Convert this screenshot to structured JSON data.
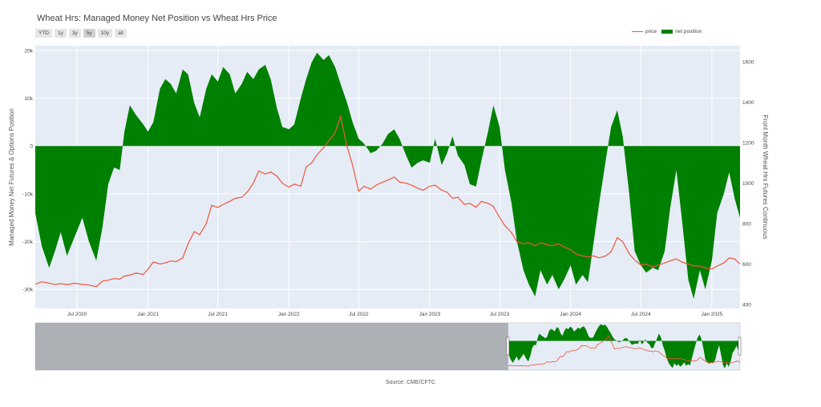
{
  "title": "Wheat Hrs: Managed Money Net Position vs Wheat Hrs Price",
  "range_buttons": [
    "YTD",
    "1y",
    "3y",
    "5y",
    "10y",
    "all"
  ],
  "active_button": "5y",
  "legend": {
    "price": "price",
    "net": "net position"
  },
  "source": "Source: CME/CFTC",
  "colors": {
    "price": "#ef553b",
    "net": "#008000",
    "plot_bg": "#e5ecf6",
    "grid": "#ffffff",
    "range_shade": "#808080"
  },
  "chart_data": {
    "type": "area",
    "title": "Wheat Hrs: Managed Money Net Position vs Wheat Hrs Price",
    "y_left_label": "Managed Money Net Futures & Options Position",
    "y_right_label": "Front Month Wheat Hrs Futures Continuous",
    "x_ticks": [
      "Jul 2020",
      "Jan 2021",
      "Jul 2021",
      "Jan 2022",
      "Jul 2022",
      "Jan 2023",
      "Jul 2023",
      "Jan 2024",
      "Jul 2024",
      "Jan 2025"
    ],
    "y_left_ticks": [
      "20k",
      "10k",
      "0",
      "-10k",
      "-20k",
      "-30k"
    ],
    "y_right_ticks": [
      "1600",
      "1400",
      "1200",
      "1000",
      "800",
      "600",
      "400"
    ],
    "x_range": [
      "2020-03-15",
      "2025-03-15"
    ],
    "y_left_range": [
      -34000,
      21000
    ],
    "y_right_range": [
      380,
      1680
    ],
    "rangeslider_visible_from": "2020-03-15",
    "rangeslider_full_range": [
      "2010-01-01",
      "2025-03-15"
    ],
    "series": [
      {
        "name": "net position",
        "kind": "area",
        "points": [
          [
            "2020-03-15",
            -14000
          ],
          [
            "2020-04-01",
            -21000
          ],
          [
            "2020-04-20",
            -25500
          ],
          [
            "2020-05-05",
            -22000
          ],
          [
            "2020-05-20",
            -18000
          ],
          [
            "2020-06-05",
            -23000
          ],
          [
            "2020-06-25",
            -19000
          ],
          [
            "2020-07-15",
            -15000
          ],
          [
            "2020-08-01",
            -20000
          ],
          [
            "2020-08-20",
            -24000
          ],
          [
            "2020-09-05",
            -17000
          ],
          [
            "2020-09-20",
            -8000
          ],
          [
            "2020-10-05",
            -4500
          ],
          [
            "2020-10-20",
            -5000
          ],
          [
            "2020-11-01",
            3000
          ],
          [
            "2020-11-15",
            8500
          ],
          [
            "2020-12-01",
            6500
          ],
          [
            "2020-12-20",
            4500
          ],
          [
            "2021-01-01",
            3000
          ],
          [
            "2021-01-15",
            5000
          ],
          [
            "2021-02-01",
            12000
          ],
          [
            "2021-02-15",
            14000
          ],
          [
            "2021-03-01",
            13000
          ],
          [
            "2021-03-15",
            11000
          ],
          [
            "2021-04-01",
            16000
          ],
          [
            "2021-04-15",
            15000
          ],
          [
            "2021-05-01",
            9000
          ],
          [
            "2021-05-15",
            6000
          ],
          [
            "2021-06-01",
            12000
          ],
          [
            "2021-06-15",
            15000
          ],
          [
            "2021-07-01",
            13500
          ],
          [
            "2021-07-15",
            16500
          ],
          [
            "2021-08-01",
            15000
          ],
          [
            "2021-08-15",
            11000
          ],
          [
            "2021-09-01",
            13000
          ],
          [
            "2021-09-15",
            15500
          ],
          [
            "2021-10-01",
            14000
          ],
          [
            "2021-10-15",
            16000
          ],
          [
            "2021-11-01",
            17000
          ],
          [
            "2021-11-15",
            14000
          ],
          [
            "2021-12-01",
            8000
          ],
          [
            "2021-12-15",
            4000
          ],
          [
            "2022-01-01",
            3500
          ],
          [
            "2022-01-15",
            4500
          ],
          [
            "2022-02-01",
            10000
          ],
          [
            "2022-02-15",
            14000
          ],
          [
            "2022-03-01",
            17500
          ],
          [
            "2022-03-15",
            19500
          ],
          [
            "2022-04-01",
            18000
          ],
          [
            "2022-04-15",
            19000
          ],
          [
            "2022-05-01",
            16500
          ],
          [
            "2022-05-15",
            13000
          ],
          [
            "2022-06-01",
            9000
          ],
          [
            "2022-06-15",
            5000
          ],
          [
            "2022-07-01",
            1500
          ],
          [
            "2022-07-15",
            500
          ],
          [
            "2022-08-01",
            -1500
          ],
          [
            "2022-08-15",
            -1000
          ],
          [
            "2022-09-01",
            500
          ],
          [
            "2022-09-15",
            2500
          ],
          [
            "2022-10-01",
            3500
          ],
          [
            "2022-10-15",
            1500
          ],
          [
            "2022-11-01",
            -2000
          ],
          [
            "2022-11-15",
            -4500
          ],
          [
            "2022-12-01",
            -3500
          ],
          [
            "2022-12-15",
            -3000
          ],
          [
            "2023-01-01",
            -3500
          ],
          [
            "2023-01-15",
            1500
          ],
          [
            "2023-02-01",
            -4000
          ],
          [
            "2023-02-15",
            -1500
          ],
          [
            "2023-03-01",
            2000
          ],
          [
            "2023-03-15",
            -2000
          ],
          [
            "2023-04-01",
            -4000
          ],
          [
            "2023-04-15",
            -8000
          ],
          [
            "2023-05-01",
            -8500
          ],
          [
            "2023-05-15",
            -3000
          ],
          [
            "2023-06-01",
            3000
          ],
          [
            "2023-06-15",
            8500
          ],
          [
            "2023-07-01",
            4000
          ],
          [
            "2023-07-15",
            -5000
          ],
          [
            "2023-08-01",
            -12000
          ],
          [
            "2023-08-15",
            -20000
          ],
          [
            "2023-09-01",
            -26000
          ],
          [
            "2023-09-15",
            -29000
          ],
          [
            "2023-10-01",
            -31500
          ],
          [
            "2023-10-15",
            -26000
          ],
          [
            "2023-11-01",
            -29000
          ],
          [
            "2023-11-15",
            -27000
          ],
          [
            "2023-12-01",
            -30000
          ],
          [
            "2023-12-15",
            -28000
          ],
          [
            "2024-01-01",
            -25000
          ],
          [
            "2024-01-15",
            -29000
          ],
          [
            "2024-02-01",
            -27000
          ],
          [
            "2024-02-15",
            -28500
          ],
          [
            "2024-03-01",
            -20000
          ],
          [
            "2024-03-15",
            -12000
          ],
          [
            "2024-04-01",
            -3000
          ],
          [
            "2024-04-15",
            4000
          ],
          [
            "2024-05-01",
            7500
          ],
          [
            "2024-05-15",
            2000
          ],
          [
            "2024-06-01",
            -10000
          ],
          [
            "2024-06-15",
            -22000
          ],
          [
            "2024-07-01",
            -25000
          ],
          [
            "2024-07-15",
            -26500
          ],
          [
            "2024-08-01",
            -25500
          ],
          [
            "2024-08-15",
            -26000
          ],
          [
            "2024-09-01",
            -22000
          ],
          [
            "2024-09-15",
            -13000
          ],
          [
            "2024-10-01",
            -5000
          ],
          [
            "2024-10-15",
            -15000
          ],
          [
            "2024-11-01",
            -28000
          ],
          [
            "2024-11-15",
            -32000
          ],
          [
            "2024-12-01",
            -26000
          ],
          [
            "2024-12-15",
            -30000
          ],
          [
            "2025-01-01",
            -24000
          ],
          [
            "2025-01-15",
            -14000
          ],
          [
            "2025-02-01",
            -10000
          ],
          [
            "2025-02-15",
            -5500
          ],
          [
            "2025-03-01",
            -11000
          ],
          [
            "2025-03-15",
            -15000
          ]
        ]
      },
      {
        "name": "price",
        "kind": "line",
        "points": [
          [
            "2020-03-15",
            500
          ],
          [
            "2020-04-01",
            512
          ],
          [
            "2020-04-20",
            505
          ],
          [
            "2020-05-05",
            498
          ],
          [
            "2020-05-20",
            503
          ],
          [
            "2020-06-05",
            497
          ],
          [
            "2020-06-25",
            505
          ],
          [
            "2020-07-15",
            499
          ],
          [
            "2020-08-01",
            496
          ],
          [
            "2020-08-20",
            488
          ],
          [
            "2020-09-05",
            515
          ],
          [
            "2020-09-20",
            520
          ],
          [
            "2020-10-05",
            528
          ],
          [
            "2020-10-20",
            525
          ],
          [
            "2020-11-01",
            540
          ],
          [
            "2020-11-15",
            545
          ],
          [
            "2020-12-01",
            555
          ],
          [
            "2020-12-20",
            548
          ],
          [
            "2021-01-01",
            575
          ],
          [
            "2021-01-15",
            610
          ],
          [
            "2021-02-01",
            600
          ],
          [
            "2021-02-15",
            605
          ],
          [
            "2021-03-01",
            615
          ],
          [
            "2021-03-15",
            612
          ],
          [
            "2021-04-01",
            630
          ],
          [
            "2021-04-15",
            700
          ],
          [
            "2021-05-01",
            760
          ],
          [
            "2021-05-15",
            745
          ],
          [
            "2021-06-01",
            800
          ],
          [
            "2021-06-15",
            890
          ],
          [
            "2021-07-01",
            880
          ],
          [
            "2021-07-15",
            895
          ],
          [
            "2021-08-01",
            910
          ],
          [
            "2021-08-15",
            925
          ],
          [
            "2021-09-01",
            930
          ],
          [
            "2021-09-15",
            955
          ],
          [
            "2021-10-01",
            1000
          ],
          [
            "2021-10-15",
            1060
          ],
          [
            "2021-11-01",
            1045
          ],
          [
            "2021-11-15",
            1055
          ],
          [
            "2021-12-01",
            1035
          ],
          [
            "2021-12-15",
            1000
          ],
          [
            "2022-01-01",
            980
          ],
          [
            "2022-01-15",
            995
          ],
          [
            "2022-02-01",
            985
          ],
          [
            "2022-02-15",
            1080
          ],
          [
            "2022-03-01",
            1100
          ],
          [
            "2022-03-15",
            1140
          ],
          [
            "2022-04-01",
            1175
          ],
          [
            "2022-04-15",
            1210
          ],
          [
            "2022-05-01",
            1250
          ],
          [
            "2022-05-15",
            1330
          ],
          [
            "2022-06-01",
            1180
          ],
          [
            "2022-06-15",
            1090
          ],
          [
            "2022-07-01",
            960
          ],
          [
            "2022-07-15",
            985
          ],
          [
            "2022-08-01",
            970
          ],
          [
            "2022-08-15",
            990
          ],
          [
            "2022-09-01",
            1005
          ],
          [
            "2022-09-15",
            1015
          ],
          [
            "2022-10-01",
            1030
          ],
          [
            "2022-10-15",
            1005
          ],
          [
            "2022-11-01",
            1000
          ],
          [
            "2022-11-15",
            990
          ],
          [
            "2022-12-01",
            975
          ],
          [
            "2022-12-15",
            965
          ],
          [
            "2023-01-01",
            985
          ],
          [
            "2023-01-15",
            990
          ],
          [
            "2023-02-01",
            965
          ],
          [
            "2023-02-15",
            955
          ],
          [
            "2023-03-01",
            925
          ],
          [
            "2023-03-15",
            930
          ],
          [
            "2023-04-01",
            895
          ],
          [
            "2023-04-15",
            900
          ],
          [
            "2023-05-01",
            880
          ],
          [
            "2023-05-15",
            910
          ],
          [
            "2023-06-01",
            900
          ],
          [
            "2023-06-15",
            885
          ],
          [
            "2023-07-01",
            830
          ],
          [
            "2023-07-15",
            790
          ],
          [
            "2023-08-01",
            755
          ],
          [
            "2023-08-15",
            710
          ],
          [
            "2023-09-01",
            700
          ],
          [
            "2023-09-15",
            705
          ],
          [
            "2023-10-01",
            690
          ],
          [
            "2023-10-15",
            705
          ],
          [
            "2023-11-01",
            695
          ],
          [
            "2023-11-15",
            690
          ],
          [
            "2023-12-01",
            700
          ],
          [
            "2023-12-15",
            685
          ],
          [
            "2024-01-01",
            670
          ],
          [
            "2024-01-15",
            650
          ],
          [
            "2024-02-01",
            640
          ],
          [
            "2024-02-15",
            635
          ],
          [
            "2024-03-01",
            640
          ],
          [
            "2024-03-15",
            630
          ],
          [
            "2024-04-01",
            640
          ],
          [
            "2024-04-15",
            660
          ],
          [
            "2024-05-01",
            730
          ],
          [
            "2024-05-15",
            710
          ],
          [
            "2024-06-01",
            650
          ],
          [
            "2024-06-15",
            620
          ],
          [
            "2024-07-01",
            595
          ],
          [
            "2024-07-15",
            600
          ],
          [
            "2024-08-01",
            585
          ],
          [
            "2024-08-15",
            595
          ],
          [
            "2024-09-01",
            605
          ],
          [
            "2024-09-15",
            615
          ],
          [
            "2024-10-01",
            625
          ],
          [
            "2024-10-15",
            610
          ],
          [
            "2024-11-01",
            600
          ],
          [
            "2024-11-15",
            590
          ],
          [
            "2024-12-01",
            590
          ],
          [
            "2024-12-15",
            580
          ],
          [
            "2025-01-01",
            575
          ],
          [
            "2025-01-15",
            590
          ],
          [
            "2025-02-01",
            605
          ],
          [
            "2025-02-15",
            630
          ],
          [
            "2025-03-01",
            625
          ],
          [
            "2025-03-15",
            600
          ]
        ]
      }
    ]
  }
}
